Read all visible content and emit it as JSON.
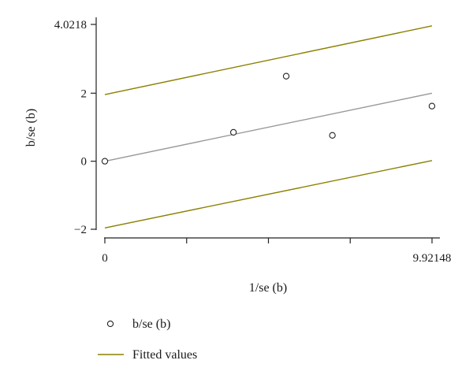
{
  "chart_data": {
    "type": "scatter",
    "xlabel": "1/se (b)",
    "ylabel": "b/se (b)",
    "xlim": [
      0,
      9.92148
    ],
    "ylim": [
      -2,
      4.0218
    ],
    "x_ticks": [
      {
        "value": 0,
        "label": "0"
      },
      {
        "value": 2.48037,
        "label": ""
      },
      {
        "value": 4.96074,
        "label": ""
      },
      {
        "value": 7.44111,
        "label": ""
      },
      {
        "value": 9.92148,
        "label": "9.92148"
      }
    ],
    "y_ticks": [
      {
        "value": -2,
        "label": "−2"
      },
      {
        "value": 0,
        "label": "0"
      },
      {
        "value": 2,
        "label": "2"
      },
      {
        "value": 4.0218,
        "label": "4.0218"
      }
    ],
    "points": [
      {
        "x": 0,
        "y": 0.0
      },
      {
        "x": 3.9,
        "y": 0.85
      },
      {
        "x": 5.5,
        "y": 2.5
      },
      {
        "x": 6.9,
        "y": 0.76
      },
      {
        "x": 9.92,
        "y": 1.62
      }
    ],
    "fitted_lines": [
      {
        "x": [
          0,
          9.92148
        ],
        "y": [
          0,
          2.0
        ],
        "color": "#999999"
      },
      {
        "x": [
          0,
          9.92148
        ],
        "y": [
          1.96,
          3.98
        ],
        "color": "#8b8000"
      },
      {
        "x": [
          0,
          9.92148
        ],
        "y": [
          -1.96,
          0.02
        ],
        "color": "#8b8000"
      }
    ],
    "legend": [
      {
        "label": "b/se (b)",
        "marker": "circle"
      },
      {
        "label": "Fitted values",
        "marker": "line",
        "color": "#8b8000"
      }
    ],
    "legend_position": "bottom-left",
    "grid": false
  }
}
